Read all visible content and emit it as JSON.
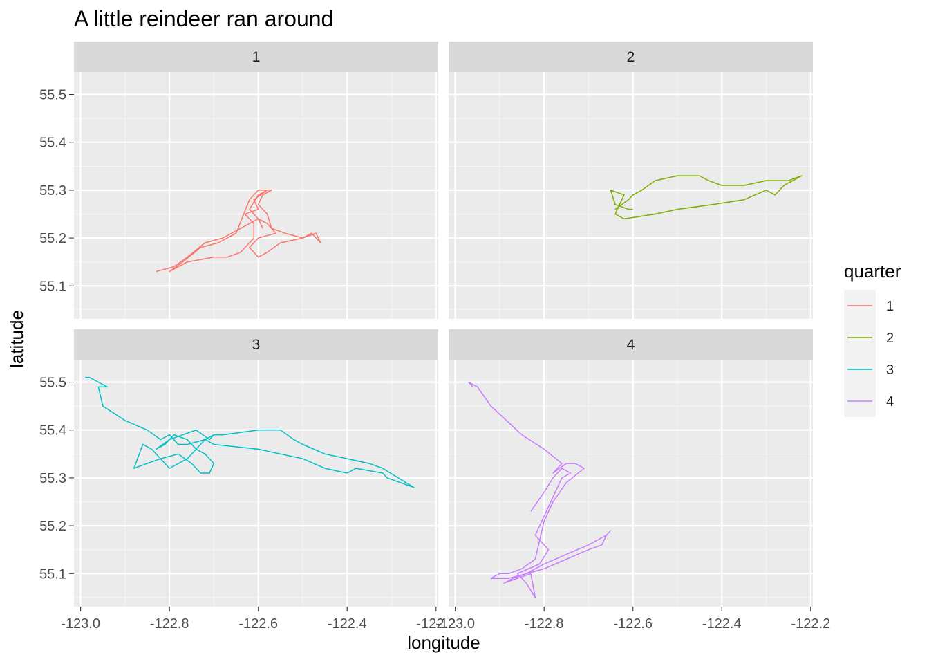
{
  "chart_data": {
    "type": "line",
    "title": "A little reindeer ran around",
    "xlabel": "longitude",
    "ylabel": "latitude",
    "xlim": [
      -123.015,
      -122.195
    ],
    "ylim": [
      55.031,
      55.547
    ],
    "x_ticks": [
      {
        "value": -123.0,
        "label": "-123.0"
      },
      {
        "value": -122.8,
        "label": "-122.8"
      },
      {
        "value": -122.6,
        "label": "-122.6"
      },
      {
        "value": -122.4,
        "label": "-122.4"
      },
      {
        "value": -122.2,
        "label": "-122.2"
      }
    ],
    "y_ticks": [
      {
        "value": 55.1,
        "label": "55.1"
      },
      {
        "value": 55.2,
        "label": "55.2"
      },
      {
        "value": 55.3,
        "label": "55.3"
      },
      {
        "value": 55.4,
        "label": "55.4"
      },
      {
        "value": 55.5,
        "label": "55.5"
      }
    ],
    "grid": true,
    "legend": {
      "title": "quarter",
      "placement": "right"
    },
    "facets": [
      {
        "name": "1",
        "color": "#F8766D",
        "x": [
          -122.83,
          -122.79,
          -122.76,
          -122.72,
          -122.68,
          -122.64,
          -122.6,
          -122.58,
          -122.56,
          -122.6,
          -122.62,
          -122.6,
          -122.58,
          -122.55,
          -122.5,
          -122.47,
          -122.46,
          -122.48,
          -122.5,
          -122.54,
          -122.57,
          -122.58,
          -122.6,
          -122.59,
          -122.57,
          -122.6,
          -122.62,
          -122.65,
          -122.69,
          -122.73,
          -122.77,
          -122.8,
          -122.76,
          -122.7,
          -122.67,
          -122.64,
          -122.61,
          -122.61,
          -122.63,
          -122.6,
          -122.61,
          -122.58,
          -122.6,
          -122.62,
          -122.6,
          -122.59
        ],
        "y": [
          55.13,
          55.14,
          55.16,
          55.19,
          55.2,
          55.22,
          55.24,
          55.23,
          55.21,
          55.2,
          55.18,
          55.16,
          55.17,
          55.19,
          55.2,
          55.21,
          55.19,
          55.21,
          55.2,
          55.21,
          55.22,
          55.25,
          55.27,
          55.29,
          55.3,
          55.3,
          55.28,
          55.21,
          55.19,
          55.18,
          55.15,
          55.13,
          55.15,
          55.16,
          55.16,
          55.17,
          55.2,
          55.23,
          55.25,
          55.26,
          55.28,
          55.3,
          55.29,
          55.26,
          55.24,
          55.22
        ]
      },
      {
        "name": "2",
        "color": "#7CAE00",
        "x": [
          -122.64,
          -122.61,
          -122.6,
          -122.58,
          -122.55,
          -122.5,
          -122.45,
          -122.43,
          -122.4,
          -122.35,
          -122.3,
          -122.25,
          -122.22,
          -122.26,
          -122.28,
          -122.3,
          -122.35,
          -122.42,
          -122.5,
          -122.55,
          -122.62,
          -122.64,
          -122.63,
          -122.62,
          -122.65,
          -122.64,
          -122.61,
          -122.6
        ],
        "y": [
          55.26,
          55.28,
          55.29,
          55.3,
          55.32,
          55.33,
          55.33,
          55.32,
          55.31,
          55.31,
          55.32,
          55.32,
          55.33,
          55.31,
          55.29,
          55.3,
          55.28,
          55.27,
          55.26,
          55.25,
          55.24,
          55.25,
          55.27,
          55.29,
          55.3,
          55.27,
          55.26,
          55.26
        ]
      },
      {
        "name": "3",
        "color": "#00BFC4",
        "x": [
          -122.99,
          -122.98,
          -122.96,
          -122.94,
          -122.96,
          -122.95,
          -122.9,
          -122.85,
          -122.82,
          -122.8,
          -122.78,
          -122.76,
          -122.72,
          -122.7,
          -122.68,
          -122.6,
          -122.55,
          -122.52,
          -122.5,
          -122.45,
          -122.35,
          -122.32,
          -122.25,
          -122.31,
          -122.32,
          -122.38,
          -122.4,
          -122.45,
          -122.5,
          -122.6,
          -122.7,
          -122.72,
          -122.74,
          -122.76,
          -122.78,
          -122.8,
          -122.82,
          -122.84,
          -122.86,
          -122.88,
          -122.85,
          -122.82,
          -122.78,
          -122.75,
          -122.73,
          -122.71,
          -122.7,
          -122.72,
          -122.74,
          -122.76,
          -122.79,
          -122.81,
          -122.83,
          -122.8,
          -122.77,
          -122.74,
          -122.71,
          -122.7
        ],
        "y": [
          55.51,
          55.51,
          55.5,
          55.49,
          55.49,
          55.45,
          55.42,
          55.4,
          55.38,
          55.39,
          55.37,
          55.37,
          55.38,
          55.39,
          55.39,
          55.4,
          55.4,
          55.38,
          55.37,
          55.35,
          55.33,
          55.32,
          55.28,
          55.3,
          55.31,
          55.32,
          55.31,
          55.32,
          55.34,
          55.36,
          55.37,
          55.38,
          55.36,
          55.34,
          55.33,
          55.32,
          55.34,
          55.36,
          55.37,
          55.32,
          55.33,
          55.34,
          55.35,
          55.33,
          55.31,
          55.31,
          55.33,
          55.35,
          55.36,
          55.38,
          55.39,
          55.37,
          55.36,
          55.38,
          55.39,
          55.4,
          55.38,
          55.39
        ]
      },
      {
        "name": "4",
        "color": "#C77CFF",
        "x": [
          -122.96,
          -122.97,
          -122.95,
          -122.92,
          -122.85,
          -122.8,
          -122.76,
          -122.78,
          -122.75,
          -122.73,
          -122.71,
          -122.75,
          -122.78,
          -122.8,
          -122.82,
          -122.85,
          -122.88,
          -122.9,
          -122.92,
          -122.88,
          -122.84,
          -122.8,
          -122.75,
          -122.7,
          -122.66,
          -122.65,
          -122.66,
          -122.67,
          -122.7,
          -122.75,
          -122.8,
          -122.84,
          -122.87,
          -122.89,
          -122.86,
          -122.83,
          -122.82,
          -122.84,
          -122.86,
          -122.81,
          -122.79,
          -122.82,
          -122.8,
          -122.78,
          -122.76,
          -122.74,
          -122.76,
          -122.78,
          -122.8,
          -122.83
        ],
        "y": [
          55.49,
          55.5,
          55.49,
          55.45,
          55.39,
          55.36,
          55.33,
          55.31,
          55.33,
          55.33,
          55.32,
          55.29,
          55.25,
          55.21,
          55.13,
          55.11,
          55.1,
          55.1,
          55.09,
          55.09,
          55.1,
          55.12,
          55.14,
          55.16,
          55.18,
          55.19,
          55.18,
          55.16,
          55.15,
          55.13,
          55.11,
          55.1,
          55.09,
          55.08,
          55.09,
          55.1,
          55.05,
          55.08,
          55.1,
          55.12,
          55.15,
          55.18,
          55.22,
          55.26,
          55.3,
          55.31,
          55.32,
          55.3,
          55.27,
          55.23
        ]
      }
    ]
  }
}
